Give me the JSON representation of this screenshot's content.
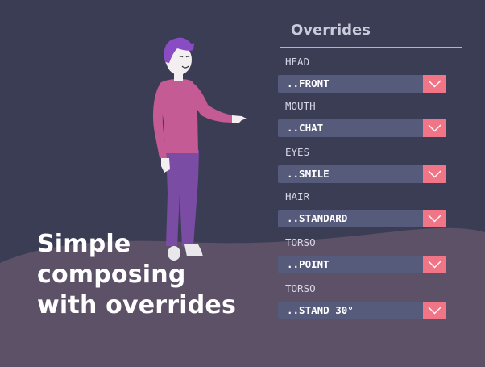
{
  "caption": {
    "lines": [
      "Simple",
      "composing",
      "with overrides"
    ]
  },
  "panel": {
    "title": "Overrides",
    "overrides": [
      {
        "label": "HEAD",
        "value": "..FRONT"
      },
      {
        "label": "MOUTH",
        "value": "..CHAT"
      },
      {
        "label": "EYES",
        "value": "..SMILE"
      },
      {
        "label": "HAIR",
        "value": "..STANDARD"
      },
      {
        "label": "TORSO",
        "value": "..POINT"
      },
      {
        "label": "TORSO",
        "value": "..STAND 30°"
      }
    ]
  },
  "icons": {
    "dropdown": "chevron-down-icon",
    "character": "character-illustration"
  },
  "colors": {
    "background": "#3b3d55",
    "hill": "#5d5167",
    "panel_select": "#565b7c",
    "accent": "#ef7587",
    "shirt": "#c45b95",
    "pants": "#7b4ca3",
    "hair": "#8a4cc4",
    "skin": "#f3eef0"
  }
}
